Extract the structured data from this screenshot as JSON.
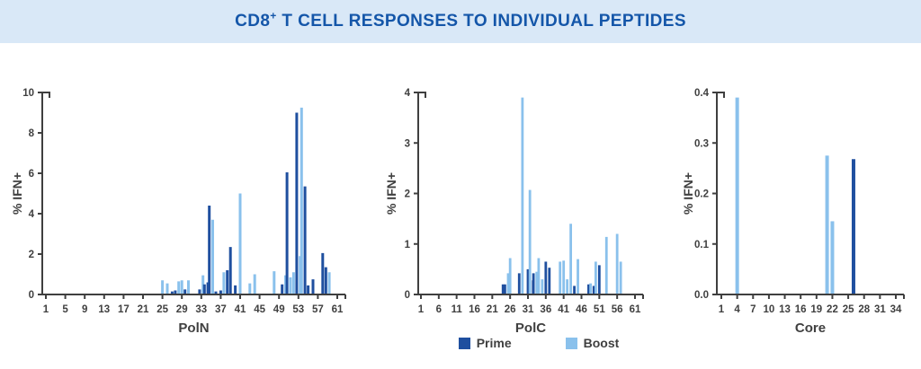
{
  "header": {
    "title_cd8": "CD8",
    "title_plus": "+",
    "title_rest": " T CELL RESPONSES TO INDIVIDUAL PEPTIDES"
  },
  "legend": {
    "items": [
      {
        "label": "Prime",
        "color": "#1f4f9f"
      },
      {
        "label": "Boost",
        "color": "#8ac1ec"
      }
    ]
  },
  "colors": {
    "axis": "#3f3f3f",
    "tick_text": "#404040",
    "banner_bg": "#d9e8f7",
    "title_text": "#1456a9"
  },
  "chart_data": [
    {
      "type": "bar",
      "xlabel": "PolN",
      "ylabel": "% IFN+",
      "ylim": [
        0,
        10
      ],
      "yticks": [
        "0",
        "2",
        "4",
        "6",
        "8",
        "10"
      ],
      "xlim": [
        1,
        61
      ],
      "xticks": [
        1,
        5,
        9,
        13,
        17,
        21,
        25,
        29,
        33,
        37,
        41,
        45,
        49,
        53,
        57,
        61
      ],
      "legend_position": "bottom-center",
      "grid": false,
      "bars": [
        {
          "x": 25,
          "series": "Boost",
          "value": 0.7
        },
        {
          "x": 26,
          "series": "Boost",
          "value": 0.55
        },
        {
          "x": 27,
          "series": "Prime",
          "value": 0.15
        },
        {
          "x": 28,
          "series": "Prime",
          "value": 0.2
        },
        {
          "x": 28,
          "series": "Boost",
          "value": 0.65
        },
        {
          "x": 29,
          "series": "Boost",
          "value": 0.7
        },
        {
          "x": 30,
          "series": "Prime",
          "value": 0.25
        },
        {
          "x": 30,
          "series": "Boost",
          "value": 0.7
        },
        {
          "x": 33,
          "series": "Prime",
          "value": 0.25
        },
        {
          "x": 33,
          "series": "Boost",
          "value": 0.95
        },
        {
          "x": 34,
          "series": "Prime",
          "value": 0.5
        },
        {
          "x": 34,
          "series": "Prime",
          "value": 0.6
        },
        {
          "x": 35,
          "series": "Prime",
          "value": 4.4
        },
        {
          "x": 35,
          "series": "Boost",
          "value": 3.7
        },
        {
          "x": 36,
          "series": "Prime",
          "value": 0.15
        },
        {
          "x": 37,
          "series": "Prime",
          "value": 0.2
        },
        {
          "x": 38,
          "series": "Boost",
          "value": 1.1
        },
        {
          "x": 38,
          "series": "Prime",
          "value": 1.2
        },
        {
          "x": 39,
          "series": "Prime",
          "value": 2.35
        },
        {
          "x": 40,
          "series": "Prime",
          "value": 0.45
        },
        {
          "x": 41,
          "series": "Boost",
          "value": 5.0
        },
        {
          "x": 43,
          "series": "Boost",
          "value": 0.55
        },
        {
          "x": 44,
          "series": "Boost",
          "value": 1.0
        },
        {
          "x": 48,
          "series": "Boost",
          "value": 1.15
        },
        {
          "x": 50,
          "series": "Prime",
          "value": 0.5
        },
        {
          "x": 50,
          "series": "Boost",
          "value": 0.95
        },
        {
          "x": 51,
          "series": "Prime",
          "value": 6.05
        },
        {
          "x": 51,
          "series": "Boost",
          "value": 0.85
        },
        {
          "x": 52,
          "series": "Boost",
          "value": 1.1
        },
        {
          "x": 53,
          "series": "Prime",
          "value": 9.0
        },
        {
          "x": 53,
          "series": "Boost",
          "value": 1.9
        },
        {
          "x": 54,
          "series": "Boost",
          "value": 9.25
        },
        {
          "x": 54,
          "series": "Prime",
          "value": 5.35
        },
        {
          "x": 55,
          "series": "Prime",
          "value": 0.45
        },
        {
          "x": 56,
          "series": "Prime",
          "value": 0.75
        },
        {
          "x": 58,
          "series": "Prime",
          "value": 2.05
        },
        {
          "x": 59,
          "series": "Prime",
          "value": 1.35
        },
        {
          "x": 59,
          "series": "Boost",
          "value": 1.1
        }
      ]
    },
    {
      "type": "bar",
      "xlabel": "PolC",
      "ylabel": "% IFN+",
      "ylim": [
        0,
        4
      ],
      "yticks": [
        "0",
        "1",
        "2",
        "3",
        "4"
      ],
      "xlim": [
        1,
        61
      ],
      "xticks": [
        1,
        6,
        11,
        16,
        21,
        26,
        31,
        36,
        41,
        46,
        51,
        56,
        61
      ],
      "legend_position": "bottom-center",
      "grid": false,
      "bars": [
        {
          "x": 24,
          "series": "Prime",
          "value": 0.2
        },
        {
          "x": 25,
          "series": "Prime",
          "value": 0.2
        },
        {
          "x": 25,
          "series": "Boost",
          "value": 0.42
        },
        {
          "x": 26,
          "series": "Boost",
          "value": 0.72
        },
        {
          "x": 29,
          "series": "Prime",
          "value": 0.42
        },
        {
          "x": 29,
          "series": "Boost",
          "value": 3.9
        },
        {
          "x": 31,
          "series": "Prime",
          "value": 0.5
        },
        {
          "x": 32,
          "series": "Boost",
          "value": 2.07
        },
        {
          "x": 32,
          "series": "Prime",
          "value": 0.28
        },
        {
          "x": 33,
          "series": "Prime",
          "value": 0.42
        },
        {
          "x": 33,
          "series": "Boost",
          "value": 0.45
        },
        {
          "x": 34,
          "series": "Boost",
          "value": 0.72
        },
        {
          "x": 35,
          "series": "Boost",
          "value": 0.3
        },
        {
          "x": 36,
          "series": "Prime",
          "value": 0.65
        },
        {
          "x": 37,
          "series": "Prime",
          "value": 0.53
        },
        {
          "x": 40,
          "series": "Boost",
          "value": 0.65
        },
        {
          "x": 41,
          "series": "Boost",
          "value": 0.67
        },
        {
          "x": 42,
          "series": "Boost",
          "value": 0.3
        },
        {
          "x": 43,
          "series": "Boost",
          "value": 1.4
        },
        {
          "x": 44,
          "series": "Prime",
          "value": 0.17
        },
        {
          "x": 45,
          "series": "Boost",
          "value": 0.7
        },
        {
          "x": 48,
          "series": "Prime",
          "value": 0.2
        },
        {
          "x": 49,
          "series": "Boost",
          "value": 0.22
        },
        {
          "x": 49,
          "series": "Prime",
          "value": 0.17
        },
        {
          "x": 50,
          "series": "Boost",
          "value": 0.65
        },
        {
          "x": 51,
          "series": "Prime",
          "value": 0.58
        },
        {
          "x": 53,
          "series": "Boost",
          "value": 1.14
        },
        {
          "x": 56,
          "series": "Boost",
          "value": 1.2
        },
        {
          "x": 57,
          "series": "Boost",
          "value": 0.65
        }
      ]
    },
    {
      "type": "bar",
      "xlabel": "Core",
      "ylabel": "% IFN+",
      "ylim": [
        0,
        0.4
      ],
      "yticks": [
        "0.0",
        "0.1",
        "0.2",
        "0.3",
        "0.4"
      ],
      "xlim": [
        1,
        34
      ],
      "xticks": [
        1,
        4,
        7,
        10,
        13,
        16,
        19,
        22,
        25,
        28,
        31,
        34
      ],
      "legend_position": "bottom-center",
      "grid": false,
      "bars": [
        {
          "x": 4,
          "series": "Boost",
          "value": 0.39
        },
        {
          "x": 21,
          "series": "Boost",
          "value": 0.275
        },
        {
          "x": 22,
          "series": "Boost",
          "value": 0.145
        },
        {
          "x": 26,
          "series": "Prime",
          "value": 0.268
        }
      ]
    }
  ]
}
